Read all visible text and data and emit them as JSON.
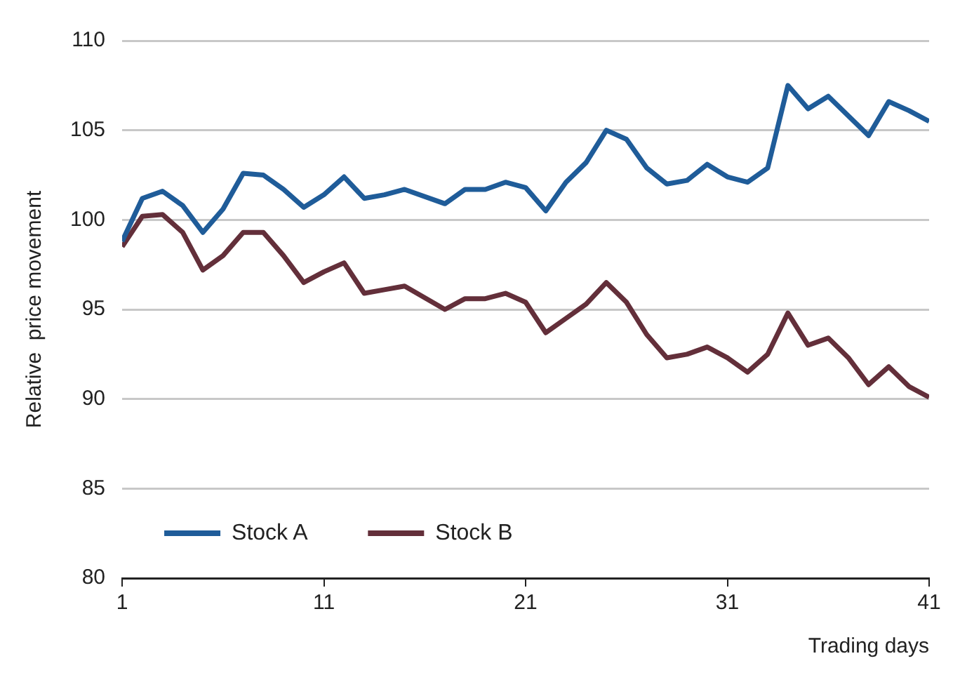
{
  "chart_data": {
    "type": "line",
    "xlabel": "Trading days",
    "ylabel": "Relative  price movement",
    "x": [
      1,
      2,
      3,
      4,
      5,
      6,
      7,
      8,
      9,
      10,
      11,
      12,
      13,
      14,
      15,
      17,
      18,
      19,
      20,
      21,
      22,
      23,
      24,
      25,
      26,
      27,
      28,
      29,
      30,
      31,
      32,
      33,
      34,
      35,
      36,
      37,
      38,
      39,
      40,
      41
    ],
    "series": [
      {
        "name": "Stock A",
        "color": "#1f5c99",
        "values": [
          98.8,
          101.2,
          101.6,
          100.8,
          99.3,
          100.6,
          102.6,
          102.5,
          101.7,
          100.7,
          101.4,
          102.4,
          101.2,
          101.4,
          101.7,
          100.9,
          101.7,
          101.7,
          102.1,
          101.8,
          100.5,
          102.1,
          103.2,
          105.0,
          104.5,
          102.9,
          102.0,
          102.2,
          103.1,
          102.4,
          102.1,
          102.9,
          107.5,
          106.2,
          106.9,
          105.8,
          104.7,
          106.6,
          106.1,
          105.5
        ]
      },
      {
        "name": "Stock B",
        "color": "#632f3a",
        "values": [
          98.5,
          100.2,
          100.3,
          99.3,
          97.2,
          98.0,
          99.3,
          99.3,
          98.0,
          96.5,
          97.1,
          97.6,
          95.9,
          96.1,
          96.3,
          95.0,
          95.6,
          95.6,
          95.9,
          95.4,
          93.7,
          94.5,
          95.3,
          96.5,
          95.4,
          93.6,
          92.3,
          92.5,
          92.9,
          92.3,
          91.5,
          92.5,
          94.8,
          93.0,
          93.4,
          92.3,
          90.8,
          91.8,
          90.7,
          90.1
        ]
      }
    ],
    "xlim": [
      1,
      41
    ],
    "xticks": [
      1,
      11,
      21,
      31,
      41
    ],
    "ylim": [
      80,
      110
    ],
    "yticks": [
      80,
      85,
      90,
      95,
      100,
      105,
      110
    ],
    "grid": "y",
    "legend": "bottom left",
    "marker": "none",
    "line_style": "solid"
  }
}
